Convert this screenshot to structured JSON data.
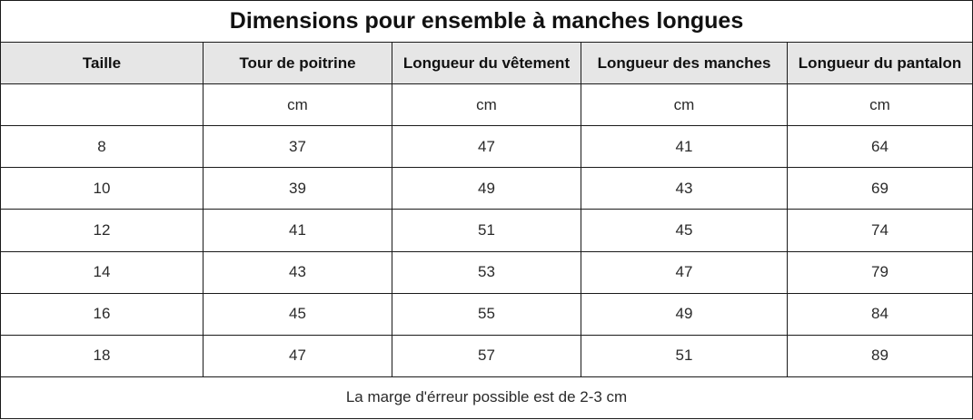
{
  "title": "Dimensions pour ensemble à manches longues",
  "columns": [
    "Taille",
    "Tour de poitrine",
    "Longueur du vêtement",
    "Longueur des manches",
    "Longueur du pantalon"
  ],
  "units": [
    "",
    "cm",
    "cm",
    "cm",
    "cm"
  ],
  "rows": [
    [
      "8",
      "37",
      "47",
      "41",
      "64"
    ],
    [
      "10",
      "39",
      "49",
      "43",
      "69"
    ],
    [
      "12",
      "41",
      "51",
      "45",
      "74"
    ],
    [
      "14",
      "43",
      "53",
      "47",
      "79"
    ],
    [
      "16",
      "45",
      "55",
      "49",
      "84"
    ],
    [
      "18",
      "47",
      "57",
      "51",
      "89"
    ]
  ],
  "footnote": "La marge d'érreur possible est de 2-3 cm",
  "colors": {
    "header_bg": "#e6e6e6",
    "border": "#1a1a1a",
    "text": "#222222"
  }
}
